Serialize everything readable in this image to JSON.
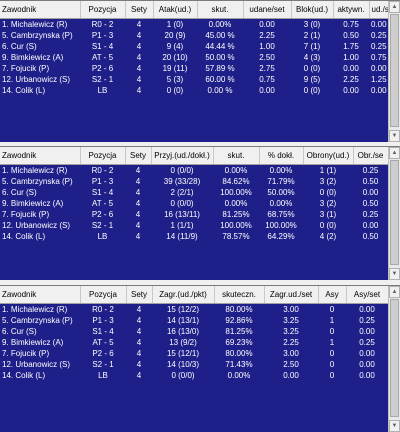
{
  "panels": [
    {
      "columns": [
        "Zawodnik",
        "Pozycja",
        "Sety",
        "Atak(ud.)",
        "skut.",
        "udane/set",
        "Blok(ud.)",
        "aktywn.",
        "ud./se"
      ],
      "rows": [
        [
          "1. Michalewicz (R)",
          "R0 - 2",
          "4",
          "1 (0)",
          "0.00%",
          "0.00",
          "3 (0)",
          "0.75",
          "0.00"
        ],
        [
          "5. Cambrzynska (P)",
          "P1 - 3",
          "4",
          "20 (9)",
          "45.00 %",
          "2.25",
          "2 (1)",
          "0.50",
          "0.25"
        ],
        [
          "6. Cur (S)",
          "S1 - 4",
          "4",
          "9 (4)",
          "44.44 %",
          "1.00",
          "7 (1)",
          "1.75",
          "0.25"
        ],
        [
          "9. Bimkiewicz (A)",
          "AT - 5",
          "4",
          "20 (10)",
          "50.00 %",
          "2.50",
          "4 (3)",
          "1.00",
          "0.75"
        ],
        [
          "7. Fojucik (P)",
          "P2 - 6",
          "4",
          "19 (11)",
          "57.89 %",
          "2.75",
          "0 (0)",
          "0.00",
          "0.00"
        ],
        [
          "12. Urbanowicz (S)",
          "S2 - 1",
          "4",
          "5 (3)",
          "60.00 %",
          "0.75",
          "9 (5)",
          "2.25",
          "1.25"
        ],
        [
          "14. Colik (L)",
          "LB",
          "4",
          "0 (0)",
          "0.00 %",
          "0.00",
          "0 (0)",
          "0.00",
          "0.00"
        ]
      ]
    },
    {
      "columns": [
        "Zawodnik",
        "Pozycja",
        "Sety",
        "Przyj.(ud./dokł.)",
        "skut.",
        "% dokł.",
        "Obrony(ud.)",
        "Obr./se"
      ],
      "rows": [
        [
          "1. Michalewicz (R)",
          "R0 - 2",
          "4",
          "0 (0/0)",
          "0.00%",
          "0.00%",
          "1 (1)",
          "0.25"
        ],
        [
          "5. Cambrzynska (P)",
          "P1 - 3",
          "4",
          "39 (33/28)",
          "84.62%",
          "71.79%",
          "3 (2)",
          "0.50"
        ],
        [
          "6. Cur (S)",
          "S1 - 4",
          "4",
          "2 (2/1)",
          "100.00%",
          "50.00%",
          "0 (0)",
          "0.00"
        ],
        [
          "9. Bimkiewicz (A)",
          "AT - 5",
          "4",
          "0 (0/0)",
          "0.00%",
          "0.00%",
          "3 (2)",
          "0.50"
        ],
        [
          "7. Fojucik (P)",
          "P2 - 6",
          "4",
          "16 (13/11)",
          "81.25%",
          "68.75%",
          "3 (1)",
          "0.25"
        ],
        [
          "12. Urbanowicz (S)",
          "S2 - 1",
          "4",
          "1 (1/1)",
          "100.00%",
          "100.00%",
          "0 (0)",
          "0.00"
        ],
        [
          "14. Colik (L)",
          "LB",
          "4",
          "14 (11/9)",
          "78.57%",
          "64.29%",
          "4 (2)",
          "0.50"
        ]
      ]
    },
    {
      "columns": [
        "Zawodnik",
        "Pozycja",
        "Sety",
        "Zagr.(ud./pkt)",
        "skuteczn.",
        "Zagr.ud./set",
        "Asy",
        "Asy/set"
      ],
      "rows": [
        [
          "1. Michalewicz (R)",
          "R0 - 2",
          "4",
          "15 (12/2)",
          "80.00%",
          "3.00",
          "0",
          "0.00"
        ],
        [
          "5. Cambrzynska (P)",
          "P1 - 3",
          "4",
          "14 (13/1)",
          "92.86%",
          "3.25",
          "1",
          "0.25"
        ],
        [
          "6. Cur (S)",
          "S1 - 4",
          "4",
          "16 (13/0)",
          "81.25%",
          "3.25",
          "0",
          "0.00"
        ],
        [
          "9. Bimkiewicz (A)",
          "AT - 5",
          "4",
          "13 (9/2)",
          "69.23%",
          "2.25",
          "1",
          "0.25"
        ],
        [
          "7. Fojucik (P)",
          "P2 - 6",
          "4",
          "15 (12/1)",
          "80.00%",
          "3.00",
          "0",
          "0.00"
        ],
        [
          "12. Urbanowicz (S)",
          "S2 - 1",
          "4",
          "14 (10/3)",
          "71.43%",
          "2.50",
          "0",
          "0.00"
        ],
        [
          "14. Colik (L)",
          "LB",
          "4",
          "0 (0/0)",
          "0.00%",
          "0.00",
          "0",
          "0.00"
        ]
      ]
    }
  ],
  "colors": {
    "grid_background": "#1f1f8a",
    "header_background": "#f0f0f0",
    "cell_text": "#ffffff"
  },
  "icons": {
    "scroll_up": "▲",
    "scroll_down": "▼"
  }
}
